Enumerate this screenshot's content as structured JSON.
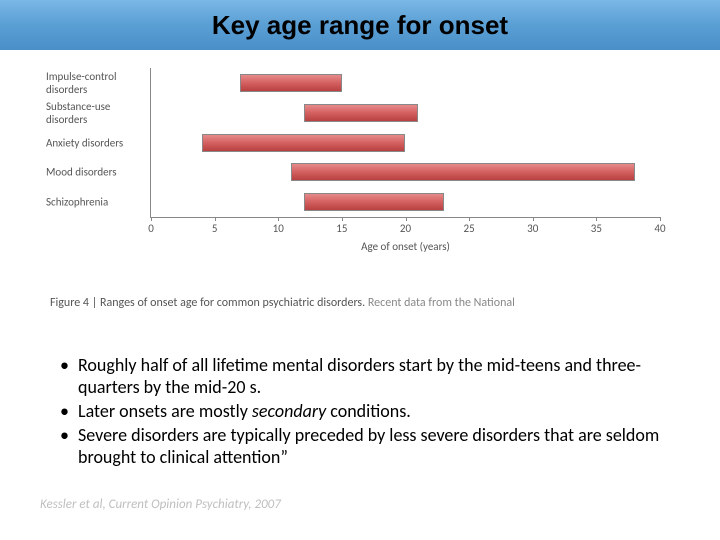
{
  "title": "Key age range for onset",
  "title_fontsize": 26,
  "chart": {
    "type": "range-bar",
    "background": "#ffffff",
    "bar_gradient": [
      "#e68a8a",
      "#d46060",
      "#b84040"
    ],
    "bar_border": "#888888",
    "axis_color": "#888888",
    "label_color": "#555555",
    "label_fontsize": 11,
    "xlabel": "Age of onset (years)",
    "xlim": [
      0,
      40
    ],
    "xtick_step": 5,
    "xticks": [
      0,
      5,
      10,
      15,
      20,
      25,
      30,
      35,
      40
    ],
    "categories": [
      {
        "label": "Impulse-control disorders",
        "start": 7,
        "end": 15
      },
      {
        "label": "Substance-use disorders",
        "start": 12,
        "end": 21
      },
      {
        "label": "Anxiety disorders",
        "start": 4,
        "end": 20
      },
      {
        "label": "Mood disorders",
        "start": 11,
        "end": 38
      },
      {
        "label": "Schizophrenia",
        "start": 12,
        "end": 23
      }
    ]
  },
  "caption_strong": "Figure 4 | Ranges of onset age for common psychiatric disorders.",
  "caption_rest": " Recent data from the National",
  "bullets": [
    {
      "pre": "Roughly half of all lifetime mental disorders start by the mid-teens and three-quarters by the mid-20 s.",
      "italic": "",
      "post": ""
    },
    {
      "pre": "Later onsets are mostly ",
      "italic": "secondary",
      "post": " conditions."
    },
    {
      "pre": "Severe disorders are typically preceded by less severe disorders that are seldom brought to clinical attention”",
      "italic": "",
      "post": ""
    }
  ],
  "citation": "Kessler et al, Current Opinion Psychiatry, 2007"
}
